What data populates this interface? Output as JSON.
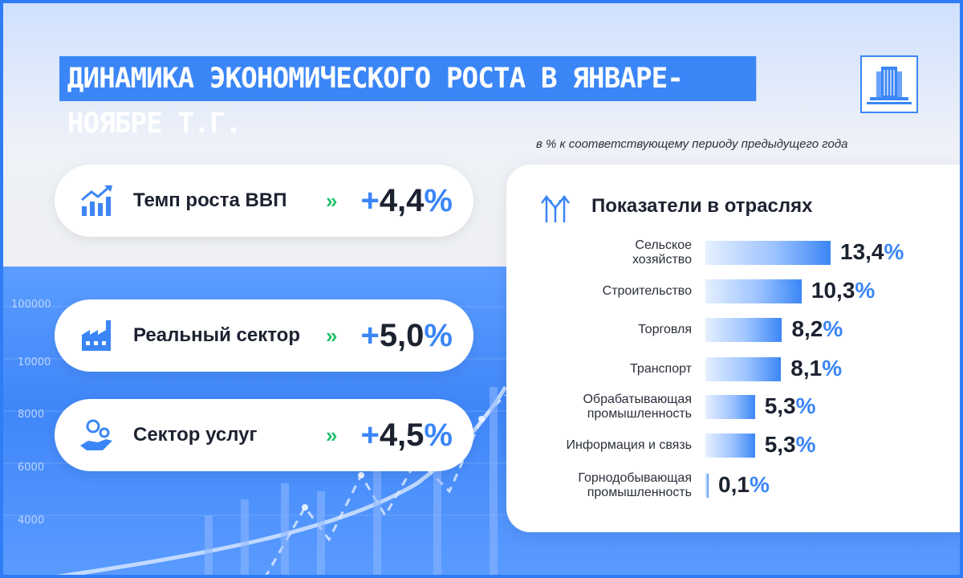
{
  "title": "ДИНАМИКА ЭКОНОМИЧЕСКОГО РОСТА В ЯНВАРЕ-НОЯБРЕ Т.Г.",
  "subtitle": "в % к соответствующему периоду предыдущего года",
  "colors": {
    "accent": "#3b86f6",
    "arrow_green": "#23c16b",
    "text_dark": "#1c2230"
  },
  "background_axis_labels": [
    "100000",
    "10000",
    "8000",
    "6000",
    "4000"
  ],
  "cards": [
    {
      "icon": "bar-chart-growth-icon",
      "label": "Темп роста ВВП",
      "arrows": "»",
      "plus": "+",
      "number": "4,4",
      "pct": "%"
    },
    {
      "icon": "factory-icon",
      "label": "Реальный сектор",
      "arrows": "»",
      "plus": "+",
      "number": "5,0",
      "pct": "%"
    },
    {
      "icon": "hand-gears-icon",
      "label": "Сектор услуг",
      "arrows": "»",
      "plus": "+",
      "number": "4,5",
      "pct": "%"
    }
  ],
  "panel": {
    "title": "Показатели в отраслях",
    "icon": "growth-arrows-icon"
  },
  "chart_data": {
    "type": "bar",
    "orientation": "horizontal",
    "title": "Показатели в отраслях",
    "unit": "%",
    "categories": [
      "Сельское хозяйство",
      "Строительство",
      "Торговля",
      "Транспорт",
      "Обрабатывающая промышленность",
      "Информация и связь",
      "Горнодобывающая промышленность"
    ],
    "category_lines": [
      [
        "Сельское",
        "хозяйство"
      ],
      [
        "Строительство"
      ],
      [
        "Торговля"
      ],
      [
        "Транспорт"
      ],
      [
        "Обрабатывающая",
        "промышленность"
      ],
      [
        "Информация и связь"
      ],
      [
        "Горнодобывающая",
        "промышленность"
      ]
    ],
    "values": [
      13.4,
      10.3,
      8.2,
      8.1,
      5.3,
      5.3,
      0.1
    ],
    "value_labels": [
      "13,4",
      "10,3",
      "8,2",
      "8,1",
      "5,3",
      "5,3",
      "0,1"
    ]
  }
}
